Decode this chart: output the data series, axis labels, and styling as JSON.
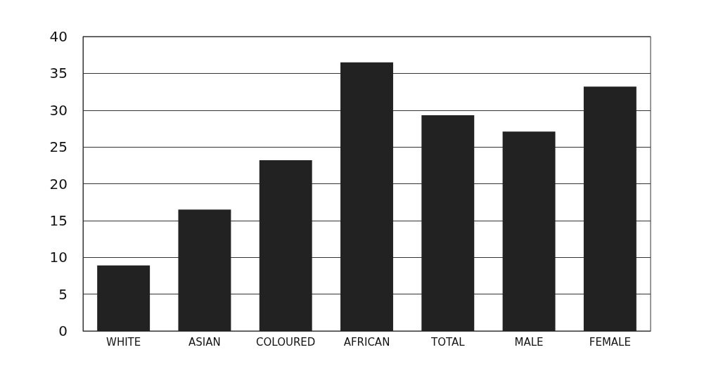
{
  "chart_data": {
    "type": "bar",
    "categories": [
      "WHITE",
      "ASIAN",
      "COLOURED",
      "AFRICAN",
      "TOTAL",
      "MALE",
      "FEMALE"
    ],
    "values": [
      8.9,
      16.5,
      23.2,
      36.5,
      29.3,
      27.1,
      33.2
    ],
    "color": "#222222",
    "ylim": [
      0,
      40
    ],
    "yticks": [
      0,
      5,
      10,
      15,
      20,
      25,
      30,
      35,
      40
    ],
    "grid": "y"
  }
}
